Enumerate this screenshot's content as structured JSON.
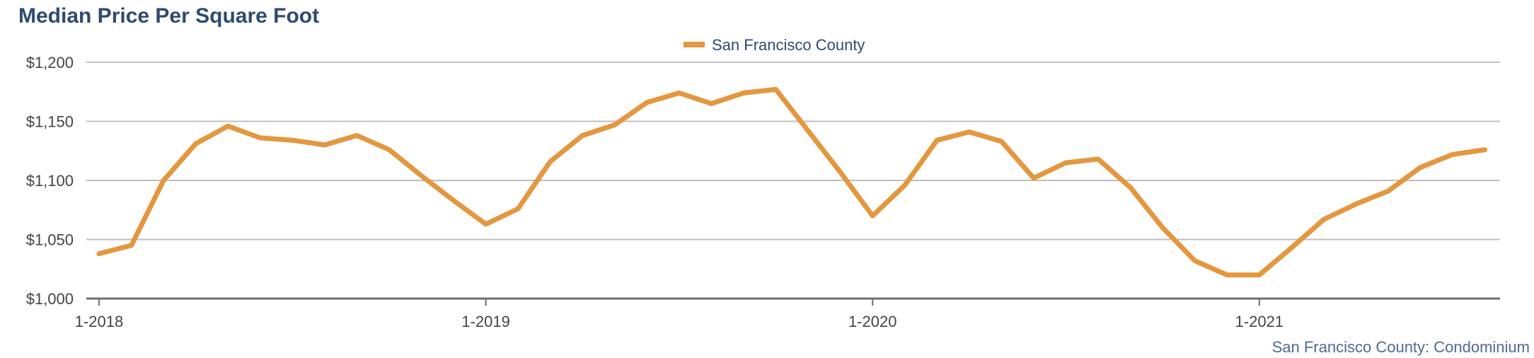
{
  "chart_data": {
    "type": "line",
    "title": "Median Price Per Square Foot",
    "xlabel": "",
    "ylabel": "",
    "ylim": [
      1000,
      1200
    ],
    "yticks": [
      1000,
      1050,
      1100,
      1150,
      1200
    ],
    "ytick_labels": [
      "$1,000",
      "$1,050",
      "$1,100",
      "$1,150",
      "$1,200"
    ],
    "xtick_labels": [
      "1-2018",
      "1-2019",
      "1-2020",
      "1-2021"
    ],
    "xtick_index": [
      0,
      12,
      24,
      36
    ],
    "grid": true,
    "legend_position": "top-center",
    "x": [
      "1-2018",
      "2-2018",
      "3-2018",
      "4-2018",
      "5-2018",
      "6-2018",
      "7-2018",
      "8-2018",
      "9-2018",
      "10-2018",
      "11-2018",
      "12-2018",
      "1-2019",
      "2-2019",
      "3-2019",
      "4-2019",
      "5-2019",
      "6-2019",
      "7-2019",
      "8-2019",
      "9-2019",
      "10-2019",
      "11-2019",
      "12-2019",
      "1-2020",
      "2-2020",
      "3-2020",
      "4-2020",
      "5-2020",
      "6-2020",
      "7-2020",
      "8-2020",
      "9-2020",
      "10-2020",
      "11-2020",
      "12-2020",
      "1-2021",
      "2-2021",
      "3-2021",
      "4-2021",
      "5-2021",
      "6-2021",
      "7-2021",
      "8-2021"
    ],
    "series": [
      {
        "name": "San Francisco County",
        "color": "#e3973f",
        "values": [
          1038,
          1045,
          1100,
          1131,
          1146,
          1136,
          1134,
          1130,
          1138,
          1126,
          1104,
          1083,
          1063,
          1076,
          1116,
          1138,
          1147,
          1166,
          1174,
          1165,
          1174,
          1177,
          1142,
          1107,
          1070,
          1096,
          1134,
          1141,
          1133,
          1102,
          1115,
          1118,
          1094,
          1060,
          1032,
          1020,
          1020,
          1043,
          1067,
          1080,
          1091,
          1111,
          1122,
          1126
        ]
      }
    ],
    "source_note": "San Francisco County: Condominium"
  }
}
